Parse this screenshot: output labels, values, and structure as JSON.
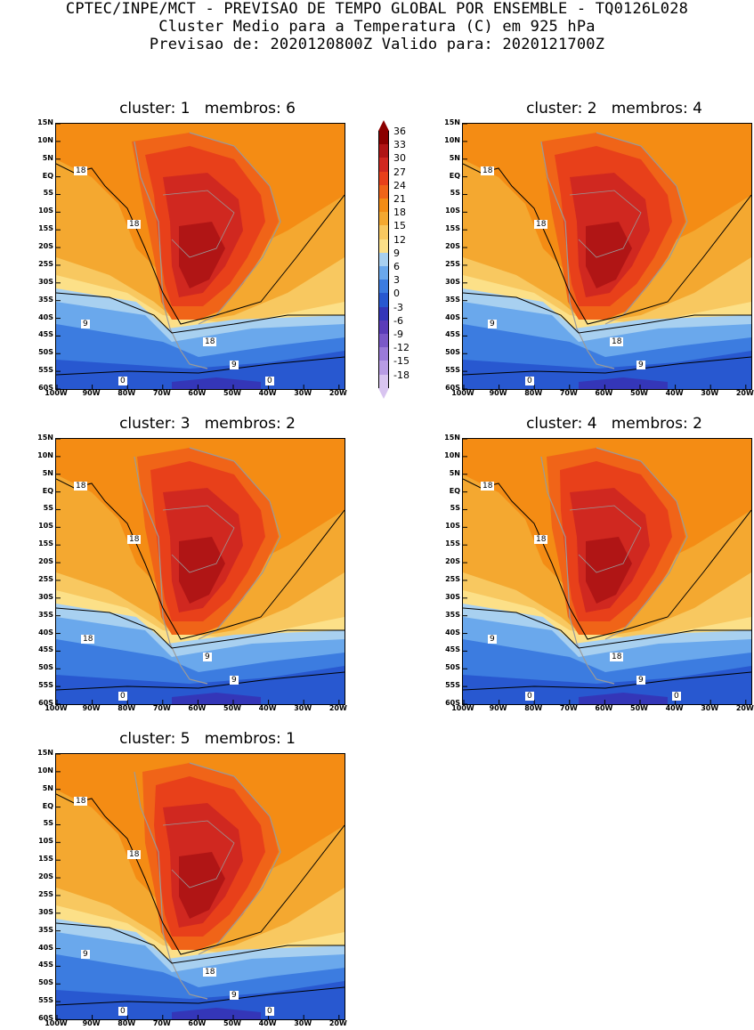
{
  "header": {
    "line1": "CPTEC/INPE/MCT - PREVISAO DE TEMPO GLOBAL POR ENSEMBLE - TQ0126L028",
    "line2": "Cluster Medio para a Temperatura (C) em 925 hPa",
    "line3": "Previsao de: 2020120800Z   Valido para: 2020121700Z"
  },
  "axes": {
    "lat_labels": [
      "15N",
      "10N",
      "5N",
      "EQ",
      "5S",
      "10S",
      "15S",
      "20S",
      "25S",
      "30S",
      "35S",
      "40S",
      "45S",
      "50S",
      "55S",
      "60S"
    ],
    "lon_labels": [
      "100W",
      "90W",
      "80W",
      "70W",
      "60W",
      "50W",
      "40W",
      "30W",
      "20W"
    ]
  },
  "colorbar": {
    "labels": [
      "36",
      "33",
      "30",
      "27",
      "24",
      "21",
      "18",
      "15",
      "12",
      "9",
      "6",
      "3",
      "0",
      "-3",
      "-6",
      "-9",
      "-12",
      "-15",
      "-18"
    ],
    "colors": [
      "#8b0000",
      "#b01515",
      "#d02820",
      "#e8401a",
      "#f06418",
      "#f48c14",
      "#f4a830",
      "#f8c860",
      "#fce088",
      "#a8d0f0",
      "#6aa8ec",
      "#3c7ce0",
      "#2858d0",
      "#3436b8",
      "#5a3cb8",
      "#7a58c8",
      "#9a7ad8",
      "#b89ce4",
      "#d8c4f0"
    ]
  },
  "panels": [
    {
      "title": "cluster: 1   membros: 6",
      "contours": [
        "18",
        "18",
        "9",
        "18",
        "9",
        "0",
        "0"
      ]
    },
    {
      "title": "cluster: 2   membros: 4",
      "contours": [
        "18",
        "18",
        "9",
        "18",
        "9",
        "0"
      ]
    },
    {
      "title": "cluster: 3   membros: 2",
      "contours": [
        "18",
        "18",
        "18",
        "9",
        "9",
        "0"
      ]
    },
    {
      "title": "cluster: 4   membros: 2",
      "contours": [
        "18",
        "18",
        "9",
        "18",
        "9",
        "0",
        "0"
      ]
    },
    {
      "title": "cluster: 5   membros: 1",
      "contours": [
        "18",
        "18",
        "9",
        "18",
        "9",
        "0",
        "0"
      ]
    }
  ]
}
